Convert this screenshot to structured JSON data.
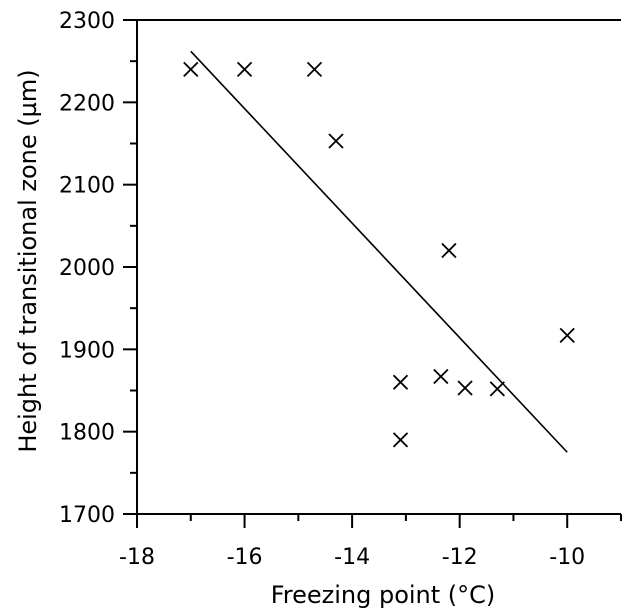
{
  "chart_data": {
    "type": "scatter",
    "title": "",
    "xlabel": "Freezing point (°C)",
    "ylabel": "Height of transitional zone (µm)",
    "xlim": [
      -18,
      -9
    ],
    "ylim": [
      1700,
      2300
    ],
    "x_ticks": [
      -18,
      -16,
      -14,
      -12,
      -10
    ],
    "y_ticks": [
      1700,
      1800,
      1900,
      2000,
      2100,
      2200,
      2300
    ],
    "x_minor_step": 1,
    "y_minor_step": 50,
    "grid": false,
    "marker": "x",
    "color": "#000000",
    "points": [
      {
        "x": -17.0,
        "y": 2240
      },
      {
        "x": -16.0,
        "y": 2240
      },
      {
        "x": -14.7,
        "y": 2240
      },
      {
        "x": -14.3,
        "y": 2153
      },
      {
        "x": -13.1,
        "y": 1860
      },
      {
        "x": -13.1,
        "y": 1790
      },
      {
        "x": -12.35,
        "y": 1867
      },
      {
        "x": -12.2,
        "y": 2020
      },
      {
        "x": -11.9,
        "y": 1853
      },
      {
        "x": -11.3,
        "y": 1852
      },
      {
        "x": -10.0,
        "y": 1917
      }
    ],
    "trendline": {
      "x": [
        -17.0,
        -10.0
      ],
      "y": [
        2262,
        1775
      ]
    }
  }
}
